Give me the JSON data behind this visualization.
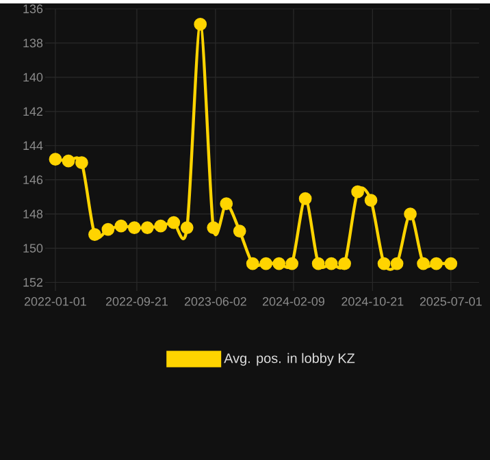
{
  "chart_data": {
    "type": "line",
    "x": [
      "2022-01-01",
      "2022-02-12",
      "2022-03-27",
      "2022-05-08",
      "2022-06-20",
      "2022-08-01",
      "2022-09-13",
      "2022-10-25",
      "2022-12-07",
      "2023-01-18",
      "2023-03-02",
      "2023-04-14",
      "2023-05-26",
      "2023-07-07",
      "2023-08-19",
      "2023-09-30",
      "2023-11-12",
      "2023-12-24",
      "2024-02-04",
      "2024-03-18",
      "2024-04-29",
      "2024-06-10",
      "2024-07-23",
      "2024-09-03",
      "2024-10-16",
      "2024-11-27",
      "2025-01-08",
      "2025-02-20",
      "2025-04-03",
      "2025-05-15",
      "2025-07-01"
    ],
    "series": [
      {
        "name": "Avg. pos. in lobby KZ",
        "color": "#ffd400",
        "values": [
          144.8,
          144.9,
          145.0,
          149.2,
          148.9,
          148.7,
          148.8,
          148.8,
          148.7,
          148.5,
          148.8,
          136.9,
          148.8,
          147.4,
          149.0,
          150.9,
          150.9,
          150.9,
          150.9,
          147.1,
          150.9,
          150.9,
          150.9,
          146.7,
          147.2,
          150.9,
          150.9,
          148.0,
          150.9,
          150.9,
          150.9
        ]
      }
    ],
    "xlim": [
      "2021-11-29",
      "2025-09-30"
    ],
    "xticks": [
      "2022-01-01",
      "2022-09-21",
      "2023-06-02",
      "2024-02-09",
      "2024-10-21",
      "2025-07-01"
    ],
    "ylim": [
      152.5,
      136
    ],
    "yticks": [
      136,
      138,
      140,
      142,
      144,
      146,
      148,
      150,
      152
    ],
    "grid": true,
    "legend": "bottom",
    "marker": "circle",
    "line_style": "solid"
  }
}
